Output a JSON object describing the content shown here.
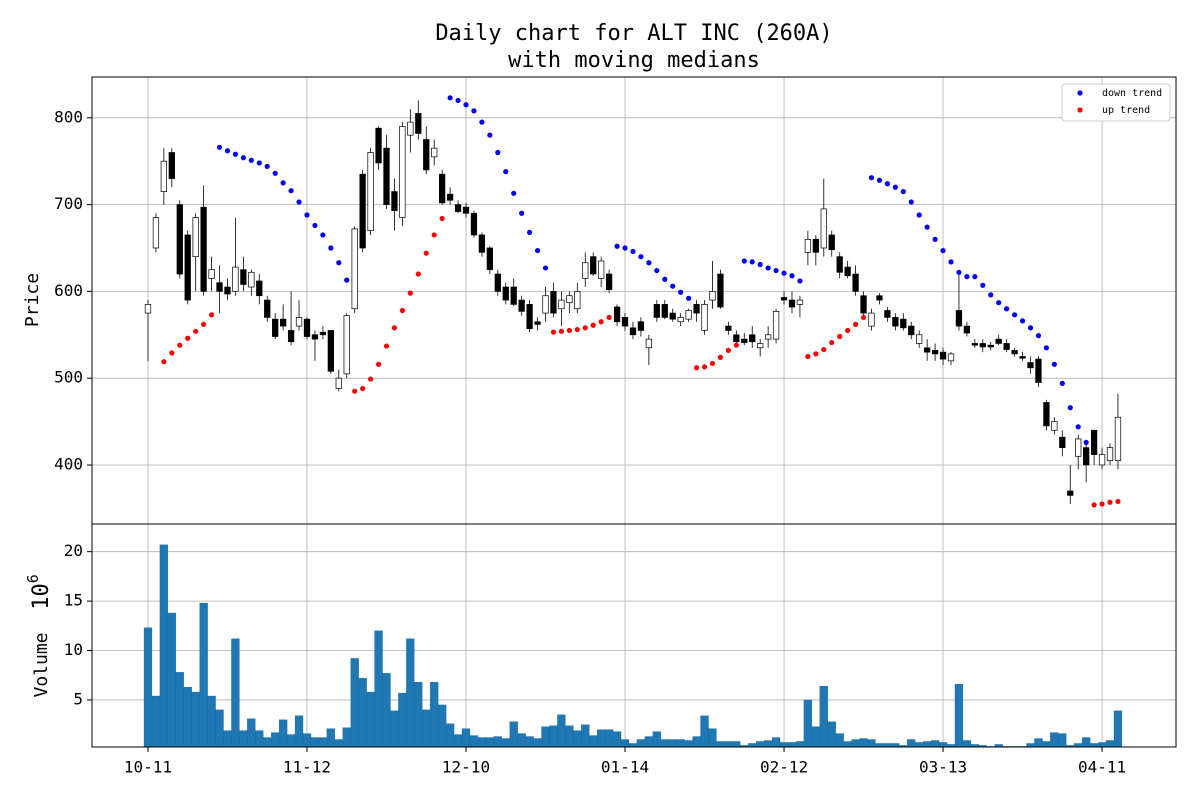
{
  "chart_data": [
    {
      "type": "candlestick",
      "title": [
        "Daily chart for ALT INC (260A)",
        "with moving medians"
      ],
      "ylabel": "Price",
      "open": [
        575,
        650,
        715,
        760,
        700,
        665,
        640,
        697,
        615,
        610,
        605,
        600,
        625,
        605,
        612,
        590,
        568,
        568,
        555,
        560,
        568,
        550,
        553,
        555,
        488,
        505,
        580,
        735,
        670,
        788,
        765,
        715,
        685,
        780,
        805,
        775,
        755,
        735,
        712,
        700,
        697,
        690,
        665,
        650,
        620,
        605,
        605,
        590,
        585,
        565,
        575,
        600,
        580,
        587,
        580,
        615,
        640,
        615,
        620,
        582,
        570,
        558,
        565,
        535,
        585,
        585,
        575,
        565,
        568,
        585,
        555,
        590,
        620,
        560,
        550,
        545,
        550,
        535,
        545,
        545,
        593,
        590,
        585,
        645,
        660,
        650,
        665,
        640,
        628,
        620,
        595,
        560,
        595,
        578,
        570,
        568,
        560,
        540,
        535,
        532,
        530,
        520,
        578,
        560,
        540,
        540,
        538,
        545,
        540,
        532,
        525,
        518,
        522,
        472,
        440,
        432,
        370,
        410,
        420,
        440,
        400,
        405,
        405
      ],
      "high": [
        590,
        690,
        765,
        765,
        705,
        670,
        690,
        722,
        640,
        630,
        615,
        685,
        640,
        625,
        620,
        595,
        575,
        585,
        600,
        590,
        570,
        555,
        560,
        555,
        510,
        575,
        675,
        740,
        765,
        790,
        780,
        730,
        795,
        810,
        820,
        790,
        775,
        740,
        720,
        705,
        702,
        693,
        668,
        652,
        625,
        610,
        615,
        595,
        590,
        570,
        605,
        610,
        600,
        600,
        610,
        645,
        645,
        640,
        625,
        585,
        575,
        565,
        570,
        550,
        590,
        590,
        580,
        575,
        580,
        590,
        590,
        635,
        625,
        565,
        555,
        552,
        560,
        545,
        560,
        580,
        600,
        600,
        595,
        670,
        665,
        730,
        670,
        645,
        635,
        630,
        600,
        580,
        598,
        582,
        575,
        575,
        565,
        555,
        545,
        540,
        535,
        530,
        620,
        565,
        545,
        545,
        542,
        550,
        545,
        535,
        530,
        525,
        525,
        475,
        455,
        440,
        400,
        435,
        425,
        440,
        420,
        425,
        482
      ],
      "low": [
        520,
        645,
        700,
        720,
        615,
        585,
        600,
        595,
        600,
        575,
        590,
        595,
        600,
        595,
        585,
        565,
        545,
        555,
        538,
        555,
        545,
        520,
        545,
        505,
        485,
        500,
        575,
        645,
        665,
        740,
        695,
        670,
        675,
        760,
        775,
        735,
        745,
        700,
        700,
        690,
        685,
        662,
        640,
        620,
        595,
        585,
        583,
        572,
        553,
        555,
        565,
        570,
        560,
        575,
        575,
        605,
        618,
        605,
        598,
        560,
        555,
        545,
        548,
        515,
        565,
        568,
        565,
        560,
        565,
        565,
        550,
        580,
        580,
        550,
        540,
        538,
        535,
        525,
        535,
        540,
        585,
        575,
        570,
        630,
        630,
        640,
        640,
        615,
        615,
        595,
        570,
        555,
        585,
        565,
        555,
        555,
        545,
        535,
        520,
        520,
        515,
        515,
        555,
        548,
        535,
        530,
        532,
        538,
        530,
        525,
        520,
        505,
        490,
        440,
        435,
        410,
        355,
        395,
        380,
        400,
        395,
        400,
        395
      ],
      "close": [
        585,
        685,
        750,
        730,
        620,
        590,
        685,
        600,
        625,
        600,
        597,
        628,
        608,
        622,
        595,
        570,
        548,
        560,
        542,
        570,
        548,
        545,
        550,
        508,
        500,
        572,
        672,
        650,
        760,
        748,
        700,
        693,
        790,
        795,
        782,
        740,
        765,
        702,
        705,
        692,
        690,
        665,
        645,
        625,
        600,
        590,
        585,
        577,
        557,
        562,
        595,
        575,
        590,
        595,
        600,
        633,
        620,
        635,
        602,
        565,
        560,
        550,
        555,
        545,
        570,
        570,
        568,
        570,
        578,
        575,
        585,
        600,
        582,
        555,
        542,
        541,
        542,
        540,
        550,
        577,
        590,
        582,
        590,
        660,
        645,
        695,
        648,
        622,
        618,
        600,
        575,
        575,
        590,
        570,
        560,
        558,
        550,
        550,
        530,
        528,
        522,
        528,
        560,
        552,
        538,
        536,
        536,
        540,
        533,
        528,
        523,
        512,
        495,
        445,
        450,
        420,
        365,
        430,
        400,
        412,
        412,
        420,
        455
      ],
      "series": [
        {
          "name": "down trend",
          "color": "#0000ff",
          "values": [
            null,
            null,
            null,
            null,
            null,
            null,
            null,
            null,
            null,
            766,
            762,
            758,
            754,
            751,
            748,
            744,
            736,
            725,
            716,
            703,
            688,
            676,
            665,
            650,
            633,
            613,
            null,
            null,
            null,
            null,
            null,
            null,
            null,
            null,
            null,
            null,
            null,
            null,
            823,
            820,
            815,
            808,
            795,
            780,
            760,
            738,
            713,
            690,
            668,
            647,
            627,
            null,
            null,
            null,
            null,
            null,
            null,
            null,
            null,
            652,
            650,
            646,
            640,
            633,
            624,
            614,
            606,
            599,
            592,
            null,
            null,
            null,
            null,
            null,
            null,
            635,
            634,
            631,
            627,
            624,
            621,
            618,
            612,
            null,
            null,
            null,
            null,
            null,
            null,
            null,
            null,
            731,
            728,
            724,
            720,
            715,
            703,
            688,
            674,
            660,
            647,
            634,
            622,
            617,
            617,
            607,
            596,
            587,
            580,
            573,
            566,
            558,
            549,
            535,
            516,
            494,
            466,
            444,
            426,
            null,
            null,
            null,
            null
          ]
        },
        {
          "name": "up trend",
          "color": "#ff0000",
          "values": [
            null,
            null,
            519,
            529,
            538,
            546,
            554,
            562,
            573,
            null,
            null,
            null,
            null,
            null,
            null,
            null,
            null,
            null,
            null,
            null,
            null,
            null,
            null,
            null,
            null,
            null,
            485,
            488,
            499,
            516,
            537,
            558,
            578,
            598,
            620,
            644,
            665,
            684,
            null,
            null,
            null,
            null,
            null,
            null,
            null,
            null,
            null,
            null,
            null,
            null,
            null,
            553,
            554,
            555,
            556,
            558,
            561,
            565,
            570,
            null,
            null,
            null,
            null,
            null,
            null,
            null,
            null,
            null,
            null,
            512,
            513,
            517,
            524,
            532,
            538,
            null,
            null,
            null,
            null,
            null,
            null,
            null,
            null,
            525,
            528,
            533,
            541,
            548,
            555,
            562,
            570,
            null,
            null,
            null,
            null,
            null,
            null,
            null,
            null,
            null,
            null,
            null,
            null,
            null,
            null,
            null,
            null,
            null,
            null,
            null,
            null,
            null,
            null,
            null,
            null,
            null,
            null,
            null,
            null,
            354,
            355,
            357,
            358
          ]
        }
      ],
      "ylim": [
        332,
        847
      ],
      "yticks": [
        400,
        500,
        600,
        700,
        800
      ],
      "grid": true,
      "legend": "upper right"
    },
    {
      "type": "bar",
      "ylabel": "Volume",
      "offset_base": "10",
      "offset_exponent": "6",
      "color": "#1f77b4",
      "values": [
        12.3,
        5.4,
        20.7,
        13.8,
        7.8,
        6.3,
        5.8,
        14.8,
        5.4,
        4.0,
        1.9,
        11.2,
        1.9,
        3.1,
        1.9,
        1.2,
        1.7,
        3.0,
        1.5,
        3.4,
        1.6,
        1.2,
        1.2,
        2.1,
        1.0,
        2.2,
        9.2,
        7.2,
        5.8,
        12.0,
        7.7,
        3.9,
        5.7,
        11.2,
        6.8,
        4.0,
        6.8,
        4.5,
        2.6,
        1.5,
        2.1,
        1.4,
        1.2,
        1.2,
        1.3,
        1.1,
        2.8,
        1.6,
        1.3,
        1.1,
        2.3,
        2.4,
        3.5,
        2.4,
        1.9,
        2.5,
        1.4,
        2.0,
        2.0,
        1.8,
        1.0,
        0.6,
        1.0,
        1.3,
        1.8,
        1.0,
        1.0,
        1.0,
        0.9,
        1.3,
        3.4,
        2.1,
        0.8,
        0.8,
        0.8,
        0.4,
        0.6,
        0.8,
        0.9,
        1.2,
        0.7,
        0.7,
        0.8,
        5.0,
        2.3,
        6.4,
        2.8,
        1.6,
        0.8,
        1.0,
        1.1,
        1.0,
        0.6,
        0.6,
        0.6,
        0.4,
        1.0,
        0.7,
        0.8,
        0.9,
        0.7,
        0.5,
        6.6,
        0.9,
        0.5,
        0.4,
        0.3,
        0.5,
        0.3,
        0.3,
        0.3,
        0.6,
        1.1,
        0.8,
        1.7,
        1.6,
        0.4,
        0.6,
        1.2,
        0.6,
        0.7,
        0.9,
        3.9
      ],
      "ylim": [
        0.24,
        22.8
      ],
      "yticks": [
        5,
        10,
        15,
        20
      ],
      "xlim": [
        -7.04,
        129.3
      ],
      "xticks": [
        {
          "value": 0,
          "label": "10-11"
        },
        {
          "value": 20,
          "label": "11-12"
        },
        {
          "value": 40,
          "label": "12-10"
        },
        {
          "value": 60,
          "label": "01-14"
        },
        {
          "value": 80,
          "label": "02-12"
        },
        {
          "value": 100,
          "label": "03-13"
        },
        {
          "value": 120,
          "label": "04-11"
        }
      ],
      "grid": true
    }
  ]
}
